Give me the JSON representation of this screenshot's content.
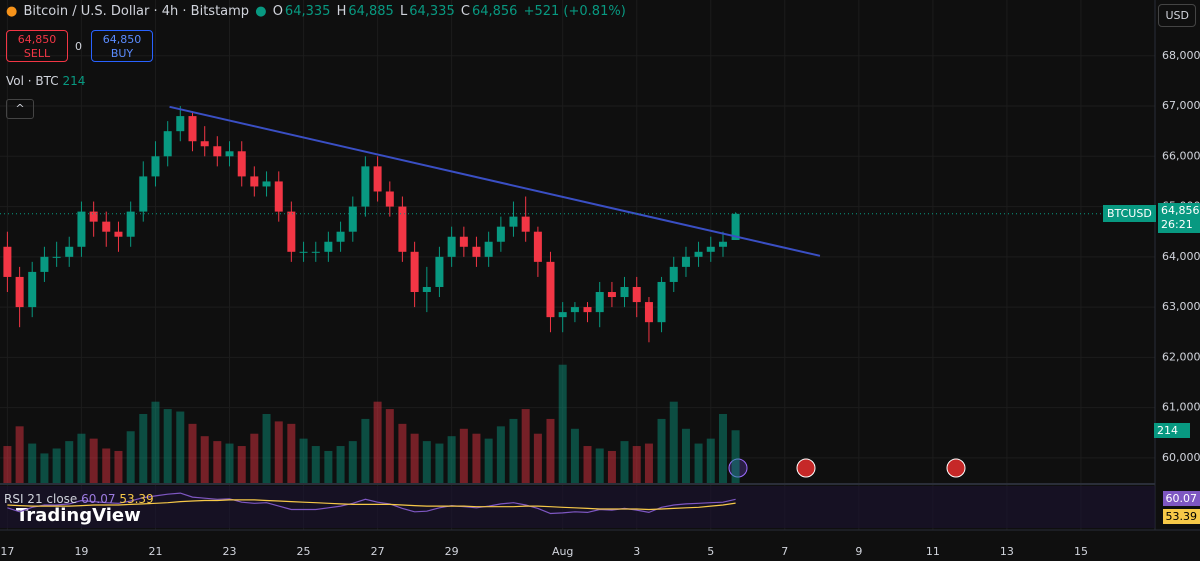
{
  "header": {
    "symbol": "Bitcoin / U.S. Dollar · 4h · Bitstamp",
    "o_label": "O",
    "o": "64,335",
    "h_label": "H",
    "h": "64,885",
    "l_label": "L",
    "l": "64,335",
    "c_label": "C",
    "c": "64,856",
    "change": "+521 (+0.81%)"
  },
  "trade": {
    "sell_price": "64,850",
    "sell": "SELL",
    "spread": "0",
    "buy_price": "64,850",
    "buy": "BUY"
  },
  "volume_label": {
    "name": "Vol · BTC",
    "value": "214"
  },
  "currency": "USD",
  "price_tag": {
    "symbol": "BTCUSD",
    "price": "64,856",
    "countdown": "26:21"
  },
  "volume_tag": "214",
  "rsi_label": {
    "name": "RSI 21 close",
    "rsi": "60.07",
    "ma": "53.39"
  },
  "rsi_tags": {
    "rsi": "60.07",
    "ma": "53.39"
  },
  "logo": "TradingView",
  "chart_data": {
    "type": "candlestick",
    "x": [
      0,
      0.33,
      0.67,
      1,
      1.33,
      1.67,
      2,
      2.33,
      2.67,
      3,
      3.33,
      3.67,
      4,
      4.33,
      4.67,
      5,
      5.33,
      5.67,
      6,
      6.33,
      6.67,
      7,
      7.33,
      7.67,
      8,
      8.33,
      8.67,
      9,
      9.33,
      9.67,
      10,
      10.33,
      10.67,
      11,
      11.33,
      11.67,
      12,
      12.33,
      12.67,
      13,
      13.33,
      13.67,
      14,
      14.33,
      14.67,
      15,
      15.33,
      15.67,
      16,
      16.33,
      16.67,
      17,
      17.33,
      17.67,
      18,
      18.33,
      18.67,
      19,
      19.33,
      19.67
    ],
    "open": [
      64200,
      63600,
      63000,
      63700,
      64000,
      64000,
      64200,
      64900,
      64700,
      64500,
      64400,
      64900,
      65600,
      66000,
      66500,
      66800,
      66300,
      66200,
      66000,
      66100,
      65600,
      65400,
      65500,
      64900,
      64100,
      64100,
      64100,
      64300,
      64500,
      65000,
      65800,
      65300,
      65000,
      64100,
      63300,
      63400,
      64000,
      64400,
      64200,
      64000,
      64300,
      64600,
      64800,
      64500,
      63900,
      62800,
      62900,
      63000,
      62900,
      63300,
      63200,
      63400,
      63100,
      62700,
      63500,
      63800,
      64000,
      64100,
      64200,
      64335
    ],
    "high": [
      64500,
      63800,
      63900,
      64200,
      64300,
      64400,
      65100,
      65100,
      64900,
      64700,
      65100,
      65900,
      66300,
      66700,
      67000,
      66900,
      66600,
      66400,
      66300,
      66300,
      65800,
      65700,
      65700,
      65100,
      64300,
      64300,
      64500,
      64700,
      65200,
      66000,
      66000,
      65500,
      65200,
      64300,
      63800,
      64200,
      64600,
      64600,
      64400,
      64500,
      64800,
      65100,
      65200,
      64600,
      64100,
      63100,
      63100,
      63100,
      63500,
      63500,
      63600,
      63600,
      63200,
      63600,
      64000,
      64200,
      64300,
      64400,
      64500,
      64885
    ],
    "low": [
      63300,
      62600,
      62800,
      63500,
      63800,
      63800,
      64000,
      64400,
      64200,
      64100,
      64200,
      64700,
      65400,
      65800,
      66300,
      66100,
      66000,
      65800,
      65800,
      65400,
      65200,
      65200,
      64700,
      63900,
      63900,
      63900,
      63900,
      64100,
      64300,
      64800,
      65100,
      64800,
      63900,
      63000,
      62900,
      63200,
      63800,
      64000,
      63800,
      63800,
      64100,
      64400,
      64300,
      63600,
      62500,
      62500,
      62700,
      62700,
      62600,
      63000,
      63000,
      62800,
      62300,
      62500,
      63300,
      63600,
      63800,
      63900,
      64000,
      64335
    ],
    "close": [
      63600,
      63000,
      63700,
      64000,
      64000,
      64200,
      64900,
      64700,
      64500,
      64400,
      64900,
      65600,
      66000,
      66500,
      66800,
      66300,
      66200,
      66000,
      66100,
      65600,
      65400,
      65500,
      64900,
      64100,
      64100,
      64100,
      64300,
      64500,
      65000,
      65800,
      65300,
      65000,
      64100,
      63300,
      63400,
      64000,
      64400,
      64200,
      64000,
      64300,
      64600,
      64800,
      64500,
      63900,
      62800,
      62900,
      63000,
      62900,
      63300,
      63200,
      63400,
      63100,
      62700,
      63500,
      63800,
      64000,
      64100,
      64200,
      64300,
      64856
    ],
    "volume": [
      150,
      230,
      160,
      120,
      140,
      170,
      200,
      180,
      140,
      130,
      210,
      280,
      330,
      300,
      290,
      240,
      190,
      170,
      160,
      150,
      200,
      280,
      250,
      240,
      180,
      150,
      130,
      150,
      170,
      260,
      330,
      300,
      240,
      200,
      170,
      160,
      190,
      220,
      200,
      180,
      230,
      260,
      300,
      200,
      260,
      480,
      220,
      150,
      140,
      130,
      170,
      150,
      160,
      260,
      330,
      220,
      160,
      180,
      280,
      214
    ],
    "rsi": [
      45,
      38,
      46,
      50,
      50,
      52,
      58,
      56,
      54,
      53,
      57,
      63,
      66,
      69,
      71,
      64,
      62,
      60,
      61,
      55,
      53,
      54,
      48,
      42,
      42,
      42,
      45,
      48,
      53,
      60,
      55,
      52,
      44,
      38,
      39,
      45,
      49,
      47,
      45,
      48,
      52,
      54,
      50,
      44,
      35,
      36,
      38,
      37,
      42,
      41,
      44,
      41,
      37,
      46,
      50,
      52,
      53,
      54,
      55,
      60.07
    ],
    "rsi_ma": [
      50,
      49,
      48,
      48,
      48,
      48,
      49,
      50,
      50,
      50,
      51,
      52,
      53,
      54,
      56,
      57,
      58,
      58,
      59,
      59,
      59,
      58,
      57,
      56,
      55,
      54,
      53,
      52,
      51,
      51,
      51,
      51,
      50,
      49,
      48,
      48,
      48,
      48,
      47,
      47,
      47,
      47,
      48,
      48,
      47,
      46,
      45,
      44,
      43,
      43,
      43,
      43,
      42,
      43,
      44,
      45,
      46,
      48,
      50,
      53.39
    ],
    "up_color": "#089981",
    "down_color": "#f23645",
    "rsi_color": "#7e57c2",
    "rsi_ma_color": "#f7c948",
    "trendline_color": "#3a4fc4",
    "trendline": {
      "x": [
        4.38,
        21.95
      ],
      "y": [
        66985,
        64020
      ]
    },
    "xlim": [
      -0.2,
      31.0
    ],
    "ylim": [
      59500,
      69110
    ],
    "vlim": [
      0,
      560
    ],
    "rsilim": [
      20,
      80
    ],
    "xticks": [
      {
        "value": 0,
        "label": "17"
      },
      {
        "value": 2,
        "label": "19"
      },
      {
        "value": 4,
        "label": "21"
      },
      {
        "value": 6,
        "label": "23"
      },
      {
        "value": 8,
        "label": "25"
      },
      {
        "value": 10,
        "label": "27"
      },
      {
        "value": 12,
        "label": "29"
      },
      {
        "value": 15,
        "label": "Aug"
      },
      {
        "value": 17,
        "label": "3"
      },
      {
        "value": 19,
        "label": "5"
      },
      {
        "value": 21,
        "label": "7"
      },
      {
        "value": 23,
        "label": "9"
      },
      {
        "value": 25,
        "label": "11"
      },
      {
        "value": 27,
        "label": "13"
      },
      {
        "value": 29,
        "label": "15"
      }
    ],
    "yticks": [
      {
        "value": 60000,
        "label": "60,000"
      },
      {
        "value": 61000,
        "label": "61,000"
      },
      {
        "value": 62000,
        "label": "62,000"
      },
      {
        "value": 63000,
        "label": "63,000"
      },
      {
        "value": 64000,
        "label": "64,000"
      },
      {
        "value": 65000,
        "label": "65,000"
      },
      {
        "value": 66000,
        "label": "66,000"
      },
      {
        "value": 67000,
        "label": "67,000"
      },
      {
        "value": 68000,
        "label": "68,000"
      }
    ],
    "grid": true
  }
}
